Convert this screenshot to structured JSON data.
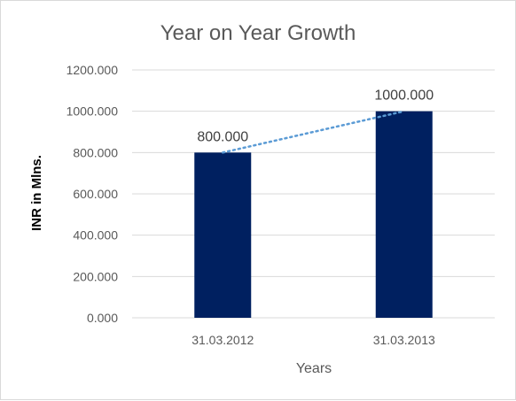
{
  "chart_data": {
    "type": "bar",
    "title": "Year on Year Growth",
    "xlabel": "Years",
    "ylabel": "INR in Mlns.",
    "categories": [
      "31.03.2012",
      "31.03.2013"
    ],
    "values": [
      800,
      1000
    ],
    "data_labels": [
      "800.000",
      "1000.000"
    ],
    "ylim": [
      0,
      1200
    ],
    "yticks": [
      0,
      200,
      400,
      600,
      800,
      1000,
      1200
    ],
    "ytick_labels": [
      "0.000",
      "200.000",
      "400.000",
      "600.000",
      "800.000",
      "1000.000",
      "1200.000"
    ],
    "grid": true,
    "legend": "none",
    "trendline": {
      "type": "linear",
      "style": "dotted",
      "color": "#5b9bd5"
    },
    "bar_color": "#002060"
  }
}
